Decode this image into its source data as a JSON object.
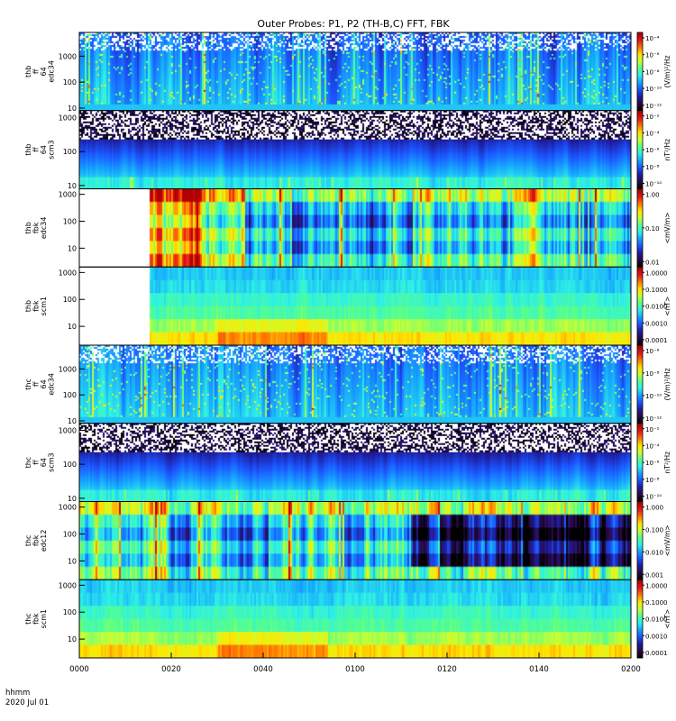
{
  "title": "Outer Probes: P1, P2 (TH-B,C) FFT, FBK",
  "time_axis": {
    "unit_label": "hhmm",
    "date_label": "2020 Jul 01",
    "tick_labels": [
      "0000",
      "0020",
      "0040",
      "0100",
      "0120",
      "0140",
      "0200"
    ]
  },
  "colors": {
    "background": "#ffffff",
    "no_data": "#ffffff",
    "colormap": [
      "#000000",
      "#2a0a4a",
      "#1e1ea0",
      "#1c56ff",
      "#16a6ff",
      "#2ef0e6",
      "#55ff8c",
      "#c8ff32",
      "#ffe600",
      "#ff7a00",
      "#e41a1a",
      "#b00000"
    ]
  },
  "chart_data": [
    {
      "type": "heatmap",
      "ylabel": [
        "thb",
        "ff",
        "64",
        "edc34"
      ],
      "y_tick_labels": [
        "10",
        "100",
        "1000"
      ],
      "ylim": [
        8,
        8192
      ],
      "y_scale": "log",
      "colorbar": {
        "tick_labels": [
          "10⁻⁴",
          "10⁻⁶",
          "10⁻⁸",
          "10⁻¹⁰",
          "10⁻¹²"
        ],
        "label": "(V/m)²/Hz",
        "range": [
          "1e-13",
          "1e-4"
        ]
      },
      "data_start": "0000",
      "character": "fft electric spectrum: broadband low-frequency enhancement with blue background and sparse white gaps above 1 kHz"
    },
    {
      "type": "heatmap",
      "ylabel": [
        "thb",
        "ff",
        "64",
        "scm3"
      ],
      "y_tick_labels": [
        "10",
        "100",
        "1000"
      ],
      "ylim": [
        8,
        1600
      ],
      "y_scale": "log",
      "colorbar": {
        "tick_labels": [
          "10⁻²",
          "10⁻⁴",
          "10⁻⁶",
          "10⁻⁸",
          "10⁻¹⁰"
        ],
        "label": "nT²/Hz",
        "range": [
          "1e-11",
          "1e-1"
        ]
      },
      "data_start": "0000",
      "character": "fft magnetic spectrum: green/yellow at lowest frequencies, blue-purple band mid, noisy black/white above ~500 Hz"
    },
    {
      "type": "heatmap",
      "ylabel": [
        "thb",
        "fbk",
        "edc34"
      ],
      "y_tick_labels": [
        "10",
        "100",
        "1000"
      ],
      "ylim": [
        2,
        1600
      ],
      "y_scale": "log",
      "colorbar": {
        "tick_labels": [
          "1.00",
          "0.10",
          "0.01"
        ],
        "label": "<mV/m>",
        "range": [
          "0.003",
          "2"
        ]
      },
      "data_start": "0015",
      "character": "filter bank E: no data before 00:15, then strong red/yellow activity until ~00:30, mixed blue/green afterwards"
    },
    {
      "type": "heatmap",
      "ylabel": [
        "thb",
        "fbk",
        "scm1"
      ],
      "y_tick_labels": [
        "10",
        "100",
        "1000"
      ],
      "ylim": [
        2,
        1600
      ],
      "y_scale": "log",
      "colorbar": {
        "tick_labels": [
          "1.0000",
          "0.1000",
          "0.0100",
          "0.0010",
          "0.0001"
        ],
        "label": "<nT>",
        "range": [
          "0.00005",
          "1"
        ]
      },
      "data_start": "0015",
      "character": "filter bank B: no data before 00:15, horizontal bands from cyan (high f) to yellow/orange (low f)"
    },
    {
      "type": "heatmap",
      "ylabel": [
        "thc",
        "ff",
        "64",
        "edc34"
      ],
      "y_tick_labels": [
        "10",
        "100",
        "1000"
      ],
      "ylim": [
        8,
        8192
      ],
      "y_scale": "log",
      "colorbar": {
        "tick_labels": [
          "10⁻⁶",
          "10⁻⁸",
          "10⁻¹⁰",
          "10⁻¹²"
        ],
        "label": "(V/m)²/Hz",
        "range": [
          "1e-13",
          "1e-5"
        ]
      },
      "data_start": "0000",
      "character": "fft electric spectrum: blue background with green/yellow vertical bursts, sparse white gaps at top"
    },
    {
      "type": "heatmap",
      "ylabel": [
        "thc",
        "ff",
        "64",
        "scm3"
      ],
      "y_tick_labels": [
        "10",
        "100",
        "1000"
      ],
      "ylim": [
        8,
        1600
      ],
      "y_scale": "log",
      "colorbar": {
        "tick_labels": [
          "10⁻²",
          "10⁻⁴",
          "10⁻⁶",
          "10⁻⁸",
          "10⁻¹⁰"
        ],
        "label": "nT²/Hz",
        "range": [
          "1e-11",
          "1e-1"
        ]
      },
      "data_start": "0000",
      "character": "fft magnetic spectrum: cyan/green low band, blue-purple mid band, noisy black/white above ~500 Hz"
    },
    {
      "type": "heatmap",
      "ylabel": [
        "thc",
        "fbk",
        "edc12"
      ],
      "y_tick_labels": [
        "10",
        "100",
        "1000"
      ],
      "ylim": [
        2,
        1600
      ],
      "y_scale": "log",
      "colorbar": {
        "tick_labels": [
          "1.000",
          "0.100",
          "0.010",
          "0.001"
        ],
        "label": "<mV/m>",
        "range": [
          "0.0007",
          "2"
        ]
      },
      "data_start": "0000",
      "character": "filter bank E: yellow/red top band, dark blue/black middle bands especially after 01:30"
    },
    {
      "type": "heatmap",
      "ylabel": [
        "thc",
        "fbk",
        "scm1"
      ],
      "y_tick_labels": [
        "10",
        "100",
        "1000"
      ],
      "ylim": [
        2,
        1600
      ],
      "y_scale": "log",
      "colorbar": {
        "tick_labels": [
          "1.0000",
          "0.1000",
          "0.0100",
          "0.0010",
          "0.0001"
        ],
        "label": "<nT>",
        "range": [
          "0.00005",
          "1"
        ]
      },
      "data_start": "0000",
      "character": "filter bank B: cyan at high frequency bands, green to yellow/orange at lowest bands"
    }
  ]
}
